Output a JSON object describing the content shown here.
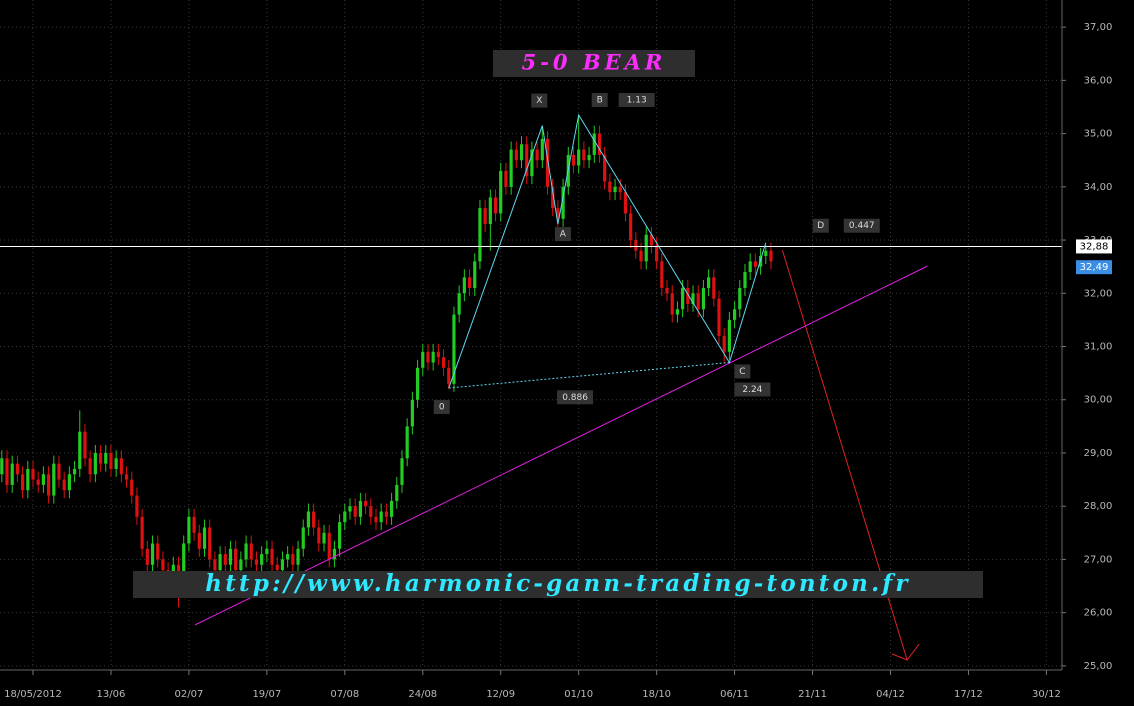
{
  "chart_data": {
    "type": "candlestick",
    "title": "5-0 BEAR",
    "watermark": "http://www.harmonic-gann-trading-tonton.fr",
    "up_color": "#22cc22",
    "down_color": "#dd1111",
    "xlim": [
      -6.35,
      198
    ],
    "xticks": [
      {
        "value": 0,
        "label": "18/05/2012"
      },
      {
        "value": 15,
        "label": "13/06"
      },
      {
        "value": 30,
        "label": "02/07"
      },
      {
        "value": 45,
        "label": "19/07"
      },
      {
        "value": 60,
        "label": "07/08"
      },
      {
        "value": 75,
        "label": "24/08"
      },
      {
        "value": 90,
        "label": "12/09"
      },
      {
        "value": 105,
        "label": "01/10"
      },
      {
        "value": 120,
        "label": "18/10"
      },
      {
        "value": 135,
        "label": "06/11"
      },
      {
        "value": 150,
        "label": "21/11"
      },
      {
        "value": 165,
        "label": "04/12"
      },
      {
        "value": 180,
        "label": "17/12"
      },
      {
        "value": 195,
        "label": "30/12"
      }
    ],
    "ylim": [
      24.96,
      37.51
    ],
    "yticks": [
      {
        "value": 25,
        "label": "25,00"
      },
      {
        "value": 26,
        "label": "26,00"
      },
      {
        "value": 27,
        "label": "27,00"
      },
      {
        "value": 28,
        "label": "28,00"
      },
      {
        "value": 29,
        "label": "29,00"
      },
      {
        "value": 30,
        "label": "30,00"
      },
      {
        "value": 31,
        "label": "31,00"
      },
      {
        "value": 32,
        "label": "32,00"
      },
      {
        "value": 33,
        "label": "33,00"
      },
      {
        "value": 34,
        "label": "34,00"
      },
      {
        "value": 35,
        "label": "35,00"
      },
      {
        "value": 36,
        "label": "36,00"
      },
      {
        "value": 37,
        "label": "37,00"
      }
    ],
    "grid": true,
    "price_line": {
      "value": 32.88,
      "label": "32,88",
      "color": "#ffffff"
    },
    "last_price": {
      "value": 32.49,
      "label": "32,49",
      "color": "#3a8ee6"
    },
    "x": [
      -6,
      -5,
      -4,
      -3,
      -2,
      -1,
      0,
      1,
      2,
      3,
      4,
      5,
      6,
      7,
      8,
      9,
      10,
      11,
      12,
      13,
      14,
      15,
      16,
      17,
      18,
      19,
      20,
      21,
      22,
      23,
      24,
      25,
      26,
      27,
      28,
      29,
      30,
      31,
      32,
      33,
      34,
      35,
      36,
      37,
      38,
      39,
      40,
      41,
      42,
      43,
      44,
      45,
      46,
      47,
      48,
      49,
      50,
      51,
      52,
      53,
      54,
      55,
      56,
      57,
      58,
      59,
      60,
      61,
      62,
      63,
      64,
      65,
      66,
      67,
      68,
      69,
      70,
      71,
      72,
      73,
      74,
      75,
      76,
      77,
      78,
      79,
      80,
      81,
      82,
      83,
      84,
      85,
      86,
      87,
      88,
      89,
      90,
      91,
      92,
      93,
      94,
      95,
      96,
      97,
      98,
      99,
      100,
      101,
      102,
      103,
      104,
      105,
      106,
      107,
      108,
      109,
      110,
      111,
      112,
      113,
      114,
      115,
      116,
      117,
      118,
      119,
      120,
      121,
      122,
      123,
      124,
      125,
      126,
      127,
      128,
      129,
      130,
      131,
      132,
      133,
      134,
      135,
      136,
      137,
      138,
      139,
      140,
      141,
      142
    ],
    "ohlc": [
      [
        28.6,
        29.05,
        28.45,
        28.9
      ],
      [
        28.9,
        29.05,
        28.25,
        28.4
      ],
      [
        28.4,
        28.95,
        28.25,
        28.8
      ],
      [
        28.8,
        28.95,
        28.45,
        28.6
      ],
      [
        28.6,
        28.75,
        28.15,
        28.3
      ],
      [
        28.3,
        28.85,
        28.15,
        28.7
      ],
      [
        28.7,
        28.85,
        28.35,
        28.5
      ],
      [
        28.5,
        28.65,
        28.25,
        28.4
      ],
      [
        28.4,
        28.75,
        28.25,
        28.6
      ],
      [
        28.6,
        28.75,
        28.05,
        28.2
      ],
      [
        28.2,
        28.95,
        28.05,
        28.8
      ],
      [
        28.8,
        28.95,
        28.35,
        28.5
      ],
      [
        28.5,
        28.65,
        28.15,
        28.3
      ],
      [
        28.3,
        28.75,
        28.15,
        28.6
      ],
      [
        28.6,
        28.85,
        28.45,
        28.7
      ],
      [
        28.7,
        29.8,
        28.55,
        29.4
      ],
      [
        29.4,
        29.55,
        28.75,
        28.9
      ],
      [
        28.9,
        29.05,
        28.45,
        28.6
      ],
      [
        28.6,
        29.15,
        28.45,
        29.0
      ],
      [
        29.0,
        29.15,
        28.65,
        28.8
      ],
      [
        28.8,
        29.15,
        28.65,
        29.0
      ],
      [
        29.0,
        29.15,
        28.55,
        28.7
      ],
      [
        28.7,
        29.05,
        28.55,
        28.9
      ],
      [
        28.9,
        29.05,
        28.45,
        28.6
      ],
      [
        28.6,
        28.75,
        28.35,
        28.5
      ],
      [
        28.5,
        28.65,
        28.05,
        28.2
      ],
      [
        28.2,
        28.35,
        27.65,
        27.8
      ],
      [
        27.8,
        27.95,
        27.05,
        27.2
      ],
      [
        27.2,
        27.35,
        26.75,
        26.9
      ],
      [
        26.9,
        27.45,
        26.75,
        27.3
      ],
      [
        27.3,
        27.45,
        26.85,
        27.0
      ],
      [
        27.0,
        27.15,
        26.65,
        26.8
      ],
      [
        26.8,
        26.95,
        26.45,
        26.6
      ],
      [
        26.6,
        27.05,
        26.45,
        26.9
      ],
      [
        26.9,
        27.05,
        26.1,
        26.6
      ],
      [
        26.6,
        27.45,
        26.45,
        27.3
      ],
      [
        27.3,
        27.95,
        27.15,
        27.8
      ],
      [
        27.8,
        27.95,
        27.35,
        27.5
      ],
      [
        27.5,
        27.65,
        27.05,
        27.2
      ],
      [
        27.2,
        27.75,
        27.05,
        27.6
      ],
      [
        27.6,
        27.75,
        26.85,
        27.0
      ],
      [
        27.0,
        27.15,
        26.65,
        26.8
      ],
      [
        26.8,
        27.25,
        26.65,
        27.1
      ],
      [
        27.1,
        27.25,
        26.75,
        26.9
      ],
      [
        26.9,
        27.35,
        26.75,
        27.2
      ],
      [
        27.2,
        27.35,
        26.65,
        26.8
      ],
      [
        26.8,
        27.15,
        26.65,
        27.0
      ],
      [
        27.0,
        27.45,
        26.85,
        27.3
      ],
      [
        27.3,
        27.45,
        26.85,
        27.0
      ],
      [
        27.0,
        27.15,
        26.75,
        26.9
      ],
      [
        26.9,
        27.25,
        26.75,
        27.1
      ],
      [
        27.1,
        27.35,
        26.95,
        27.2
      ],
      [
        27.2,
        27.35,
        26.75,
        26.9
      ],
      [
        26.9,
        27.05,
        26.65,
        26.8
      ],
      [
        26.8,
        27.15,
        26.65,
        27.0
      ],
      [
        27.0,
        27.25,
        26.85,
        27.1
      ],
      [
        27.1,
        27.25,
        26.75,
        26.9
      ],
      [
        26.9,
        27.35,
        26.75,
        27.2
      ],
      [
        27.2,
        27.75,
        27.05,
        27.6
      ],
      [
        27.6,
        28.05,
        27.45,
        27.9
      ],
      [
        27.9,
        28.05,
        27.45,
        27.6
      ],
      [
        27.6,
        27.75,
        27.15,
        27.3
      ],
      [
        27.3,
        27.65,
        27.15,
        27.5
      ],
      [
        27.5,
        27.65,
        26.85,
        27.0
      ],
      [
        27.0,
        27.35,
        26.85,
        27.2
      ],
      [
        27.2,
        27.85,
        27.05,
        27.7
      ],
      [
        27.7,
        28.05,
        27.55,
        27.9
      ],
      [
        27.9,
        28.15,
        27.75,
        28.0
      ],
      [
        28.0,
        28.15,
        27.65,
        27.8
      ],
      [
        27.8,
        28.25,
        27.65,
        28.1
      ],
      [
        28.1,
        28.25,
        27.85,
        28.0
      ],
      [
        28.0,
        28.15,
        27.65,
        27.8
      ],
      [
        27.8,
        27.95,
        27.55,
        27.7
      ],
      [
        27.7,
        28.05,
        27.55,
        27.9
      ],
      [
        27.9,
        28.05,
        27.65,
        27.8
      ],
      [
        27.8,
        28.25,
        27.65,
        28.1
      ],
      [
        28.1,
        28.55,
        27.95,
        28.4
      ],
      [
        28.4,
        29.05,
        28.25,
        28.9
      ],
      [
        28.9,
        29.65,
        28.75,
        29.5
      ],
      [
        29.5,
        30.15,
        29.35,
        30.0
      ],
      [
        30.0,
        30.75,
        29.85,
        30.6
      ],
      [
        30.6,
        31.05,
        30.45,
        30.9
      ],
      [
        30.9,
        31.05,
        30.55,
        30.7
      ],
      [
        30.7,
        31.05,
        30.55,
        30.9
      ],
      [
        30.9,
        31.05,
        30.65,
        30.8
      ],
      [
        30.8,
        30.95,
        30.45,
        30.6
      ],
      [
        30.6,
        30.75,
        30.2,
        30.3
      ],
      [
        30.3,
        31.75,
        30.15,
        31.6
      ],
      [
        31.6,
        32.15,
        31.45,
        32.0
      ],
      [
        32.0,
        32.45,
        31.85,
        32.3
      ],
      [
        32.3,
        32.45,
        31.95,
        32.1
      ],
      [
        32.1,
        32.75,
        31.95,
        32.6
      ],
      [
        32.6,
        33.75,
        32.45,
        33.6
      ],
      [
        33.6,
        33.75,
        33.15,
        33.3
      ],
      [
        33.3,
        33.95,
        32.8,
        33.8
      ],
      [
        33.8,
        33.95,
        33.35,
        33.5
      ],
      [
        33.5,
        34.45,
        33.35,
        34.3
      ],
      [
        34.3,
        34.45,
        33.85,
        34.0
      ],
      [
        34.0,
        34.85,
        33.85,
        34.7
      ],
      [
        34.7,
        34.85,
        34.35,
        34.5
      ],
      [
        34.5,
        34.95,
        34.35,
        34.8
      ],
      [
        34.8,
        34.95,
        34.05,
        34.2
      ],
      [
        34.2,
        34.85,
        34.05,
        34.7
      ],
      [
        34.7,
        34.85,
        34.35,
        34.5
      ],
      [
        34.5,
        35.15,
        34.35,
        34.9
      ],
      [
        34.9,
        35.05,
        33.85,
        34.0
      ],
      [
        34.0,
        34.15,
        33.45,
        33.6
      ],
      [
        33.6,
        33.75,
        33.25,
        33.4
      ],
      [
        33.4,
        34.15,
        33.25,
        34.0
      ],
      [
        34.0,
        34.75,
        33.85,
        34.6
      ],
      [
        34.6,
        34.75,
        34.25,
        34.4
      ],
      [
        34.4,
        35.35,
        34.25,
        34.7
      ],
      [
        34.7,
        34.85,
        34.35,
        34.5
      ],
      [
        34.5,
        34.75,
        34.35,
        34.6
      ],
      [
        34.6,
        35.15,
        34.45,
        35.0
      ],
      [
        35.0,
        35.15,
        34.45,
        34.6
      ],
      [
        34.6,
        34.75,
        33.95,
        34.1
      ],
      [
        34.1,
        34.25,
        33.75,
        33.9
      ],
      [
        33.9,
        34.15,
        33.75,
        34.0
      ],
      [
        34.0,
        34.15,
        33.75,
        33.9
      ],
      [
        33.9,
        34.05,
        33.35,
        33.5
      ],
      [
        33.5,
        33.65,
        32.85,
        33.0
      ],
      [
        33.0,
        33.15,
        32.65,
        32.8
      ],
      [
        32.8,
        32.95,
        32.45,
        32.6
      ],
      [
        32.6,
        33.25,
        32.45,
        33.1
      ],
      [
        33.1,
        33.25,
        32.75,
        32.9
      ],
      [
        32.9,
        33.05,
        32.45,
        32.6
      ],
      [
        32.6,
        32.75,
        31.95,
        32.1
      ],
      [
        32.1,
        32.25,
        31.85,
        32.0
      ],
      [
        32.0,
        32.15,
        31.45,
        31.6
      ],
      [
        31.6,
        31.85,
        31.45,
        31.7
      ],
      [
        31.7,
        32.25,
        31.55,
        32.1
      ],
      [
        32.1,
        32.25,
        31.65,
        31.8
      ],
      [
        31.8,
        32.15,
        31.65,
        32.0
      ],
      [
        32.0,
        32.15,
        31.55,
        31.7
      ],
      [
        31.7,
        32.25,
        31.55,
        32.1
      ],
      [
        32.1,
        32.45,
        31.95,
        32.3
      ],
      [
        32.3,
        32.45,
        31.75,
        31.9
      ],
      [
        31.9,
        32.05,
        31.05,
        31.2
      ],
      [
        31.2,
        31.35,
        30.7,
        30.9
      ],
      [
        30.9,
        31.65,
        30.75,
        31.5
      ],
      [
        31.5,
        31.85,
        31.35,
        31.7
      ],
      [
        31.7,
        32.25,
        31.55,
        32.1
      ],
      [
        32.1,
        32.55,
        31.95,
        32.4
      ],
      [
        32.4,
        32.75,
        32.25,
        32.6
      ],
      [
        32.6,
        32.75,
        32.35,
        32.5
      ],
      [
        32.5,
        32.85,
        32.35,
        32.7
      ],
      [
        32.7,
        32.9,
        32.55,
        32.8
      ],
      [
        32.8,
        32.95,
        32.45,
        32.6
      ]
    ],
    "pattern": {
      "color": "#5fd8f0",
      "points": [
        {
          "label": "0",
          "x": 80,
          "y": 30.22
        },
        {
          "label": "X",
          "x": 98,
          "y": 35.15
        },
        {
          "label": "A",
          "x": 101,
          "y": 33.3
        },
        {
          "label": "B",
          "x": 105,
          "y": 35.35,
          "ratio": 1.13
        },
        {
          "label": "C",
          "x": 134,
          "y": 30.7,
          "ratio": 2.24
        },
        {
          "label": "D",
          "x": 141,
          "y": 32.95,
          "ratio": 0.447
        }
      ],
      "baseline_ratio": 0.886
    },
    "trendline": {
      "x": [
        31.2,
        172.1
      ],
      "y": [
        25.77,
        32.51
      ],
      "color": "#e020e0"
    },
    "projection": {
      "x": [
        144.2,
        168.2
      ],
      "y": [
        32.81,
        25.11
      ],
      "color": "#dd2222"
    }
  }
}
